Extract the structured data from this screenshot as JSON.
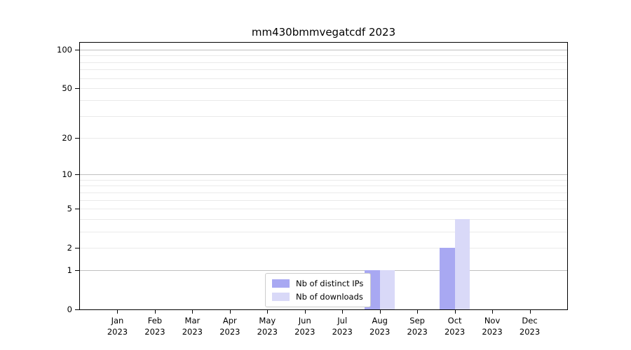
{
  "title": "mm430bmmvegatcdf 2023",
  "chart_data": {
    "type": "bar",
    "title": "mm430bmmvegatcdf 2023",
    "x_months": [
      "Jan",
      "Feb",
      "Mar",
      "Apr",
      "May",
      "Jun",
      "Jul",
      "Aug",
      "Sep",
      "Oct",
      "Nov",
      "Dec"
    ],
    "x_year": "2023",
    "y_ticks": [
      0,
      1,
      2,
      5,
      10,
      20,
      50,
      100
    ],
    "y_scale": "log1p",
    "ylim": [
      0,
      113.4
    ],
    "grid": true,
    "legend_position": "lower center-left inside plot",
    "series": [
      {
        "name": "Nb of distinct IPs",
        "color": "#a8a8f2",
        "values": [
          0,
          0,
          0,
          0,
          0,
          0,
          0,
          1,
          0,
          2,
          0,
          0
        ]
      },
      {
        "name": "Nb of downloads",
        "color": "#d9d9f8",
        "values": [
          0,
          0,
          0,
          0,
          0,
          0,
          0,
          1,
          0,
          4,
          0,
          0
        ]
      }
    ],
    "colors": {
      "major_grid": "#c0c0c0",
      "minor_grid": "#eaeaea",
      "axis": "#000000",
      "background": "#ffffff"
    }
  }
}
